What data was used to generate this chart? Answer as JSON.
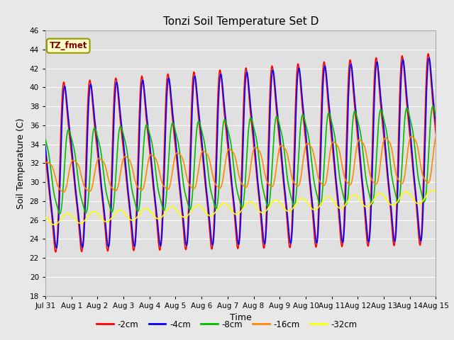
{
  "title": "Tonzi Soil Temperature Set D",
  "xlabel": "Time",
  "ylabel": "Soil Temperature (C)",
  "annotation": "TZ_fmet",
  "ylim": [
    18,
    46
  ],
  "xlim": [
    0,
    15
  ],
  "xtick_labels": [
    "Jul 31",
    "Aug 1",
    "Aug 2",
    "Aug 3",
    "Aug 4",
    "Aug 5",
    "Aug 6",
    "Aug 7",
    "Aug 8",
    "Aug 9",
    "Aug 10",
    "Aug 11",
    "Aug 12",
    "Aug 13",
    "Aug 14",
    "Aug 15"
  ],
  "series_colors": [
    "#ff0000",
    "#0000ff",
    "#00bb00",
    "#ff8800",
    "#ffff00"
  ],
  "series_labels": [
    "-2cm",
    "-4cm",
    "-8cm",
    "-16cm",
    "-32cm"
  ],
  "bg_color": "#e8e8e8",
  "plot_bg_color": "#e0e0e0",
  "annotation_bg": "#ffffcc",
  "annotation_border": "#999900",
  "annotation_text_color": "#880000",
  "linewidth": 1.2
}
